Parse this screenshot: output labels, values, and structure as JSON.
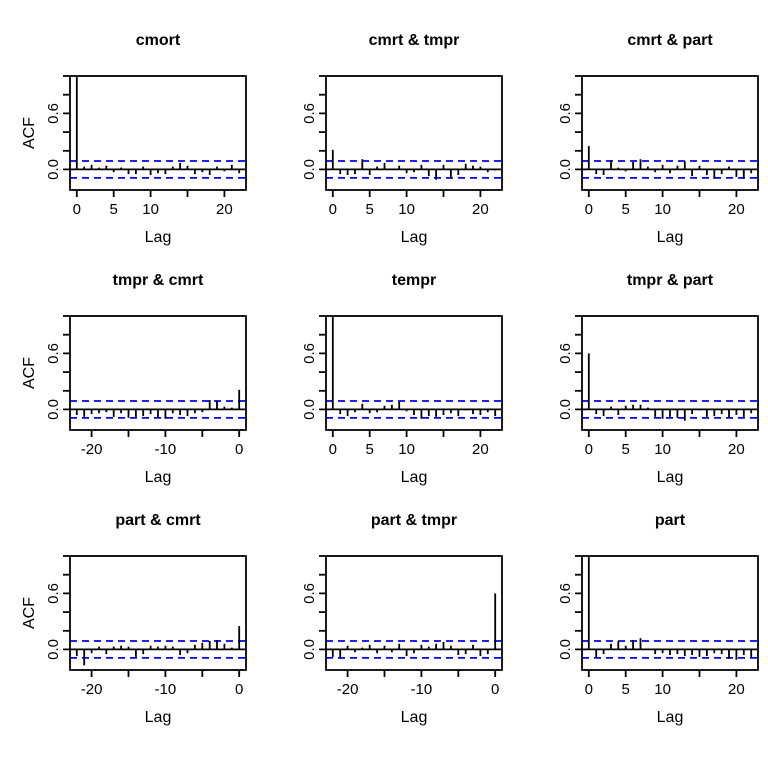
{
  "figure": {
    "colors": {
      "series": "#000000",
      "confidence_band": "#0000FF",
      "background": "#FFFFFF",
      "text": "#000000"
    },
    "grid_layout": "3x3"
  },
  "chart_data": [
    {
      "type": "bar",
      "title": "cmort",
      "xlabel": "Lag",
      "ylabel": "ACF",
      "ci": 0.09,
      "ylim": [
        -0.22,
        1.0
      ],
      "ytick_values": [
        0.0,
        0.2,
        0.4,
        0.6,
        0.8,
        1.0
      ],
      "ytick_labels": [
        "0.0",
        "",
        "",
        "0.6",
        "",
        ""
      ],
      "xtick_lags": [
        0,
        5,
        10,
        15,
        20
      ],
      "xtick_labels": [
        "0",
        "5",
        "10",
        "",
        "20"
      ],
      "lags": [
        0,
        1,
        2,
        3,
        4,
        5,
        6,
        7,
        8,
        9,
        10,
        11,
        12,
        13,
        14,
        15,
        16,
        17,
        18,
        19,
        20,
        21,
        22
      ],
      "values": [
        1.0,
        0.03,
        0.05,
        0.02,
        0.04,
        -0.03,
        0.02,
        -0.05,
        -0.05,
        0.03,
        -0.06,
        -0.04,
        -0.05,
        0.03,
        0.07,
        0.04,
        -0.05,
        -0.03,
        -0.06,
        0.03,
        -0.02,
        0.05,
        -0.04
      ]
    },
    {
      "type": "bar",
      "title": "cmrt & tmpr",
      "xlabel": "Lag",
      "ylabel": "",
      "ci": 0.09,
      "ylim": [
        -0.22,
        1.0
      ],
      "ytick_values": [
        0.0,
        0.2,
        0.4,
        0.6,
        0.8,
        1.0
      ],
      "ytick_labels": [
        "0.0",
        "",
        "",
        "0.6",
        "",
        ""
      ],
      "xtick_lags": [
        0,
        5,
        10,
        15,
        20
      ],
      "xtick_labels": [
        "0",
        "5",
        "10",
        "",
        "20"
      ],
      "lags": [
        0,
        1,
        2,
        3,
        4,
        5,
        6,
        7,
        8,
        9,
        10,
        11,
        12,
        13,
        14,
        15,
        16,
        17,
        18,
        19,
        20,
        21,
        22
      ],
      "values": [
        0.21,
        -0.05,
        -0.06,
        -0.05,
        0.11,
        -0.06,
        0.03,
        0.07,
        0.01,
        0.04,
        -0.04,
        -0.03,
        0.05,
        -0.07,
        -0.11,
        0.05,
        -0.1,
        -0.06,
        0.06,
        0.04,
        0.03,
        -0.03,
        -0.01
      ]
    },
    {
      "type": "bar",
      "title": "cmrt & part",
      "xlabel": "Lag",
      "ylabel": "",
      "ci": 0.09,
      "ylim": [
        -0.22,
        1.0
      ],
      "ytick_values": [
        0.0,
        0.2,
        0.4,
        0.6,
        0.8,
        1.0
      ],
      "ytick_labels": [
        "0.0",
        "",
        "",
        "0.6",
        "",
        ""
      ],
      "xtick_lags": [
        0,
        5,
        10,
        15,
        20
      ],
      "xtick_labels": [
        "0",
        "5",
        "10",
        "",
        "20"
      ],
      "lags": [
        0,
        1,
        2,
        3,
        4,
        5,
        6,
        7,
        8,
        9,
        10,
        11,
        12,
        13,
        14,
        15,
        16,
        17,
        18,
        19,
        20,
        21,
        22
      ],
      "values": [
        0.25,
        -0.05,
        -0.06,
        0.1,
        0.02,
        -0.02,
        0.08,
        0.11,
        0.03,
        -0.03,
        0.05,
        -0.04,
        0.04,
        0.09,
        -0.07,
        0.04,
        -0.06,
        -0.1,
        -0.05,
        0.03,
        -0.08,
        -0.1,
        -0.04
      ]
    },
    {
      "type": "bar",
      "title": "tmpr & cmrt",
      "xlabel": "Lag",
      "ylabel": "ACF",
      "ci": 0.09,
      "ylim": [
        -0.22,
        1.0
      ],
      "ytick_values": [
        0.0,
        0.2,
        0.4,
        0.6,
        0.8,
        1.0
      ],
      "ytick_labels": [
        "0.0",
        "",
        "",
        "0.6",
        "",
        ""
      ],
      "xtick_lags": [
        -20,
        -15,
        -10,
        -5,
        0
      ],
      "xtick_labels": [
        "-20",
        "",
        "-10",
        "",
        "0"
      ],
      "lags": [
        -22,
        -21,
        -20,
        -19,
        -18,
        -17,
        -16,
        -15,
        -14,
        -13,
        -12,
        -11,
        -10,
        -9,
        -8,
        -7,
        -6,
        -5,
        -4,
        -3,
        -2,
        -1,
        0
      ],
      "values": [
        -0.06,
        -0.08,
        -0.05,
        -0.04,
        -0.03,
        -0.08,
        -0.04,
        -0.09,
        -0.08,
        -0.07,
        -0.05,
        -0.09,
        -0.1,
        -0.04,
        -0.06,
        -0.07,
        -0.04,
        -0.03,
        0.1,
        0.09,
        0.03,
        0.02,
        0.21
      ]
    },
    {
      "type": "bar",
      "title": "tempr",
      "xlabel": "Lag",
      "ylabel": "",
      "ci": 0.09,
      "ylim": [
        -0.22,
        1.0
      ],
      "ytick_values": [
        0.0,
        0.2,
        0.4,
        0.6,
        0.8,
        1.0
      ],
      "ytick_labels": [
        "0.0",
        "",
        "",
        "0.6",
        "",
        ""
      ],
      "xtick_lags": [
        0,
        5,
        10,
        15,
        20
      ],
      "xtick_labels": [
        "0",
        "5",
        "10",
        "",
        "20"
      ],
      "lags": [
        0,
        1,
        2,
        3,
        4,
        5,
        6,
        7,
        8,
        9,
        10,
        11,
        12,
        13,
        14,
        15,
        16,
        17,
        18,
        19,
        20,
        21,
        22
      ],
      "values": [
        1.0,
        -0.05,
        -0.07,
        -0.03,
        0.06,
        -0.04,
        -0.03,
        0.04,
        0.05,
        0.08,
        -0.02,
        -0.06,
        -0.1,
        -0.07,
        -0.08,
        -0.06,
        -0.04,
        -0.07,
        -0.01,
        -0.05,
        -0.06,
        -0.03,
        -0.07
      ]
    },
    {
      "type": "bar",
      "title": "tmpr & part",
      "xlabel": "Lag",
      "ylabel": "",
      "ci": 0.09,
      "ylim": [
        -0.22,
        1.0
      ],
      "ytick_values": [
        0.0,
        0.2,
        0.4,
        0.6,
        0.8,
        1.0
      ],
      "ytick_labels": [
        "0.0",
        "",
        "",
        "0.6",
        "",
        ""
      ],
      "xtick_lags": [
        0,
        5,
        10,
        15,
        20
      ],
      "xtick_labels": [
        "0",
        "5",
        "10",
        "",
        "20"
      ],
      "lags": [
        0,
        1,
        2,
        3,
        4,
        5,
        6,
        7,
        8,
        9,
        10,
        11,
        12,
        13,
        14,
        15,
        16,
        17,
        18,
        19,
        20,
        21,
        22
      ],
      "values": [
        0.6,
        -0.05,
        -0.07,
        0.03,
        -0.06,
        0.04,
        0.05,
        0.05,
        0.02,
        -0.08,
        -0.1,
        -0.08,
        -0.09,
        -0.12,
        -0.05,
        -0.01,
        -0.08,
        -0.07,
        -0.05,
        -0.09,
        -0.06,
        -0.08,
        -0.04
      ]
    },
    {
      "type": "bar",
      "title": "part & cmrt",
      "xlabel": "Lag",
      "ylabel": "ACF",
      "ci": 0.09,
      "ylim": [
        -0.22,
        1.0
      ],
      "ytick_values": [
        0.0,
        0.2,
        0.4,
        0.6,
        0.8,
        1.0
      ],
      "ytick_labels": [
        "0.0",
        "",
        "",
        "0.6",
        "",
        ""
      ],
      "xtick_lags": [
        -20,
        -15,
        -10,
        -5,
        0
      ],
      "xtick_labels": [
        "-20",
        "",
        "-10",
        "",
        "0"
      ],
      "lags": [
        -22,
        -21,
        -20,
        -19,
        -18,
        -17,
        -16,
        -15,
        -14,
        -13,
        -12,
        -11,
        -10,
        -9,
        -8,
        -7,
        -6,
        -5,
        -4,
        -3,
        -2,
        -1,
        0
      ],
      "values": [
        -0.07,
        -0.17,
        -0.04,
        0.03,
        -0.05,
        0.03,
        0.04,
        0.03,
        -0.08,
        -0.05,
        0.04,
        0.03,
        0.04,
        0.03,
        -0.06,
        -0.04,
        0.05,
        0.07,
        0.09,
        0.1,
        0.06,
        0.02,
        0.25
      ]
    },
    {
      "type": "bar",
      "title": "part & tmpr",
      "xlabel": "Lag",
      "ylabel": "",
      "ci": 0.09,
      "ylim": [
        -0.22,
        1.0
      ],
      "ytick_values": [
        0.0,
        0.2,
        0.4,
        0.6,
        0.8,
        1.0
      ],
      "ytick_labels": [
        "0.0",
        "",
        "",
        "0.6",
        "",
        ""
      ],
      "xtick_lags": [
        -20,
        -15,
        -10,
        -5,
        0
      ],
      "xtick_labels": [
        "-20",
        "",
        "-10",
        "",
        "0"
      ],
      "lags": [
        -22,
        -21,
        -20,
        -19,
        -18,
        -17,
        -16,
        -15,
        -14,
        -13,
        -12,
        -11,
        -10,
        -9,
        -8,
        -7,
        -6,
        -5,
        -4,
        -3,
        -2,
        -1,
        0
      ],
      "values": [
        -0.08,
        -0.1,
        0.04,
        -0.03,
        0.02,
        0.05,
        -0.04,
        0.04,
        -0.03,
        0.06,
        -0.07,
        -0.04,
        0.05,
        0.03,
        0.06,
        0.08,
        0.04,
        -0.06,
        -0.05,
        0.05,
        -0.07,
        -0.05,
        0.6
      ]
    },
    {
      "type": "bar",
      "title": "part",
      "xlabel": "Lag",
      "ylabel": "",
      "ci": 0.09,
      "ylim": [
        -0.22,
        1.0
      ],
      "ytick_values": [
        0.0,
        0.2,
        0.4,
        0.6,
        0.8,
        1.0
      ],
      "ytick_labels": [
        "0.0",
        "",
        "",
        "0.6",
        "",
        ""
      ],
      "xtick_lags": [
        0,
        5,
        10,
        15,
        20
      ],
      "xtick_labels": [
        "0",
        "5",
        "10",
        "",
        "20"
      ],
      "lags": [
        0,
        1,
        2,
        3,
        4,
        5,
        6,
        7,
        8,
        9,
        10,
        11,
        12,
        13,
        14,
        15,
        16,
        17,
        18,
        19,
        20,
        21,
        22
      ],
      "values": [
        1.0,
        -0.09,
        -0.05,
        0.06,
        0.09,
        0.04,
        0.1,
        0.12,
        0.01,
        -0.05,
        -0.04,
        -0.06,
        -0.05,
        -0.07,
        -0.06,
        -0.08,
        -0.07,
        -0.04,
        -0.05,
        -0.1,
        -0.11,
        -0.06,
        -0.09
      ]
    }
  ]
}
